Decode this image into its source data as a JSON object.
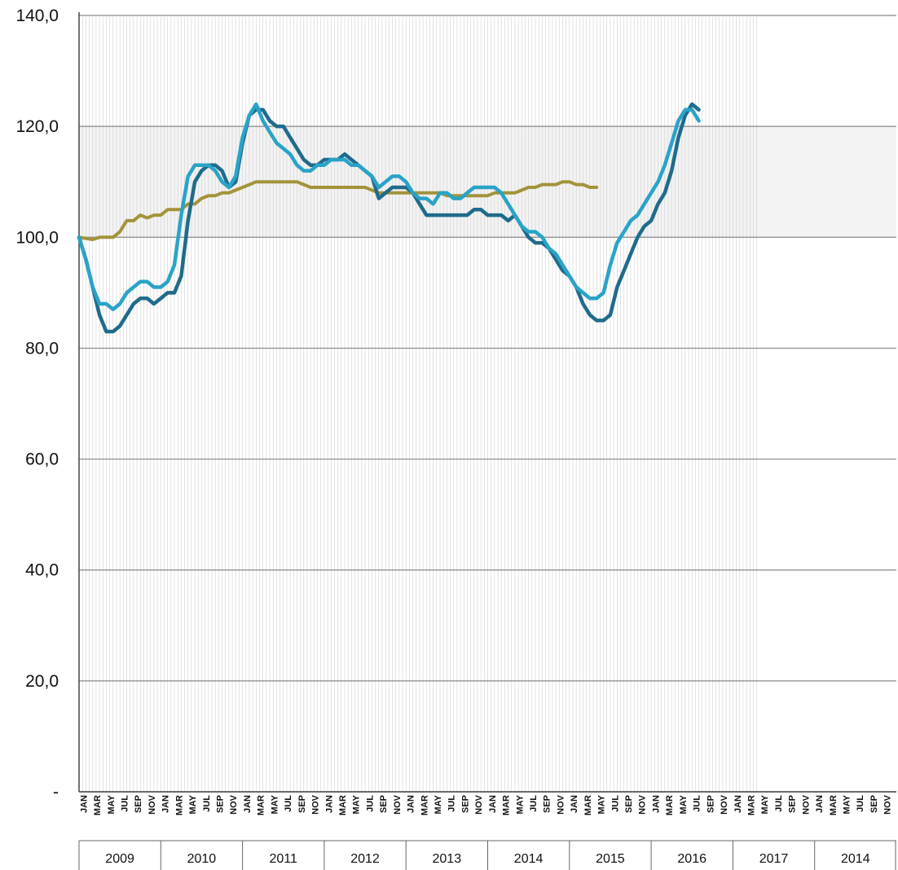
{
  "chart_data": {
    "type": "line",
    "title": "",
    "xlabel": "",
    "ylabel": "",
    "ylim": [
      0,
      140
    ],
    "grid": true,
    "legend": "none",
    "y_ticks": [
      "-",
      "20,0",
      "40,0",
      "60,0",
      "80,0",
      "100,0",
      "120,0",
      "140,0"
    ],
    "y_tick_values": [
      0,
      20,
      40,
      60,
      80,
      100,
      120,
      140
    ],
    "month_labels": [
      "JAN",
      "MAR",
      "MAY",
      "JUL",
      "SEP",
      "NOV"
    ],
    "year_labels": [
      "2009",
      "2010",
      "2011",
      "2012",
      "2013",
      "2014",
      "2015",
      "2016",
      "2017",
      "2014"
    ],
    "shaded_band": [
      100,
      120
    ],
    "colors": {
      "dark_teal": "#1f6b8c",
      "light_blue": "#2aa3c8",
      "olive": "#a3933a",
      "grid": "#888888",
      "band": "#f3f3f3"
    },
    "series": [
      {
        "color": "#1f6b8c",
        "points": [
          [
            0,
            100
          ],
          [
            1,
            96
          ],
          [
            2,
            91
          ],
          [
            3,
            86
          ],
          [
            4,
            83
          ],
          [
            5,
            83
          ],
          [
            6,
            84
          ],
          [
            7,
            86
          ],
          [
            8,
            88
          ],
          [
            9,
            89
          ],
          [
            10,
            89
          ],
          [
            11,
            88
          ],
          [
            12,
            89
          ],
          [
            13,
            90
          ],
          [
            14,
            90
          ],
          [
            15,
            93
          ],
          [
            16,
            103
          ],
          [
            17,
            110
          ],
          [
            18,
            112
          ],
          [
            19,
            113
          ],
          [
            20,
            113
          ],
          [
            21,
            112
          ],
          [
            22,
            109
          ],
          [
            23,
            110
          ],
          [
            24,
            117
          ],
          [
            25,
            122
          ],
          [
            26,
            123
          ],
          [
            27,
            123
          ],
          [
            28,
            121
          ],
          [
            29,
            120
          ],
          [
            30,
            120
          ],
          [
            31,
            118
          ],
          [
            32,
            116
          ],
          [
            33,
            114
          ],
          [
            34,
            113
          ],
          [
            35,
            113
          ],
          [
            36,
            114
          ],
          [
            37,
            114
          ],
          [
            38,
            114
          ],
          [
            39,
            115
          ],
          [
            40,
            114
          ],
          [
            41,
            113
          ],
          [
            42,
            112
          ],
          [
            43,
            111
          ],
          [
            44,
            107
          ],
          [
            45,
            108
          ],
          [
            46,
            109
          ],
          [
            47,
            109
          ],
          [
            48,
            109
          ],
          [
            49,
            108
          ],
          [
            50,
            106
          ],
          [
            51,
            104
          ],
          [
            52,
            104
          ],
          [
            53,
            104
          ],
          [
            54,
            104
          ],
          [
            55,
            104
          ],
          [
            56,
            104
          ],
          [
            57,
            104
          ],
          [
            58,
            105
          ],
          [
            59,
            105
          ],
          [
            60,
            104
          ],
          [
            61,
            104
          ],
          [
            62,
            104
          ],
          [
            63,
            103
          ],
          [
            64,
            104
          ],
          [
            65,
            102
          ],
          [
            66,
            100
          ],
          [
            67,
            99
          ],
          [
            68,
            99
          ],
          [
            69,
            98
          ],
          [
            70,
            96
          ],
          [
            71,
            94
          ],
          [
            72,
            93
          ],
          [
            73,
            91
          ],
          [
            74,
            88
          ],
          [
            75,
            86
          ],
          [
            76,
            85
          ],
          [
            77,
            85
          ],
          [
            78,
            86
          ],
          [
            79,
            91
          ],
          [
            80,
            94
          ],
          [
            81,
            97
          ],
          [
            82,
            100
          ],
          [
            83,
            102
          ],
          [
            84,
            103
          ],
          [
            85,
            106
          ],
          [
            86,
            108
          ],
          [
            87,
            112
          ],
          [
            88,
            118
          ],
          [
            89,
            122
          ],
          [
            90,
            124
          ],
          [
            91,
            123
          ]
        ]
      },
      {
        "color": "#2aa3c8",
        "points": [
          [
            0,
            100
          ],
          [
            1,
            96
          ],
          [
            2,
            91
          ],
          [
            3,
            88
          ],
          [
            4,
            88
          ],
          [
            5,
            87
          ],
          [
            6,
            88
          ],
          [
            7,
            90
          ],
          [
            8,
            91
          ],
          [
            9,
            92
          ],
          [
            10,
            92
          ],
          [
            11,
            91
          ],
          [
            12,
            91
          ],
          [
            13,
            92
          ],
          [
            14,
            95
          ],
          [
            15,
            104
          ],
          [
            16,
            111
          ],
          [
            17,
            113
          ],
          [
            18,
            113
          ],
          [
            19,
            113
          ],
          [
            20,
            112
          ],
          [
            21,
            110
          ],
          [
            22,
            109
          ],
          [
            23,
            111
          ],
          [
            24,
            118
          ],
          [
            25,
            122
          ],
          [
            26,
            124
          ],
          [
            27,
            121
          ],
          [
            28,
            119
          ],
          [
            29,
            117
          ],
          [
            30,
            116
          ],
          [
            31,
            115
          ],
          [
            32,
            113
          ],
          [
            33,
            112
          ],
          [
            34,
            112
          ],
          [
            35,
            113
          ],
          [
            36,
            113
          ],
          [
            37,
            114
          ],
          [
            38,
            114
          ],
          [
            39,
            114
          ],
          [
            40,
            113
          ],
          [
            41,
            113
          ],
          [
            42,
            112
          ],
          [
            43,
            111
          ],
          [
            44,
            109
          ],
          [
            45,
            110
          ],
          [
            46,
            111
          ],
          [
            47,
            111
          ],
          [
            48,
            110
          ],
          [
            49,
            108
          ],
          [
            50,
            107
          ],
          [
            51,
            107
          ],
          [
            52,
            106
          ],
          [
            53,
            108
          ],
          [
            54,
            108
          ],
          [
            55,
            107
          ],
          [
            56,
            107
          ],
          [
            57,
            108
          ],
          [
            58,
            109
          ],
          [
            59,
            109
          ],
          [
            60,
            109
          ],
          [
            61,
            109
          ],
          [
            62,
            108
          ],
          [
            63,
            106
          ],
          [
            64,
            104
          ],
          [
            65,
            102
          ],
          [
            66,
            101
          ],
          [
            67,
            101
          ],
          [
            68,
            100
          ],
          [
            69,
            98
          ],
          [
            70,
            97
          ],
          [
            71,
            95
          ],
          [
            72,
            93
          ],
          [
            73,
            91
          ],
          [
            74,
            90
          ],
          [
            75,
            89
          ],
          [
            76,
            89
          ],
          [
            77,
            90
          ],
          [
            78,
            95
          ],
          [
            79,
            99
          ],
          [
            80,
            101
          ],
          [
            81,
            103
          ],
          [
            82,
            104
          ],
          [
            83,
            106
          ],
          [
            84,
            108
          ],
          [
            85,
            110
          ],
          [
            86,
            113
          ],
          [
            87,
            117
          ],
          [
            88,
            121
          ],
          [
            89,
            123
          ],
          [
            90,
            123
          ],
          [
            91,
            121
          ]
        ]
      },
      {
        "color": "#a3933a",
        "points": [
          [
            0,
            100
          ],
          [
            1,
            99.8
          ],
          [
            2,
            99.6
          ],
          [
            3,
            100
          ],
          [
            4,
            100
          ],
          [
            5,
            100
          ],
          [
            6,
            101
          ],
          [
            7,
            103
          ],
          [
            8,
            103
          ],
          [
            9,
            104
          ],
          [
            10,
            103.5
          ],
          [
            11,
            104
          ],
          [
            12,
            104
          ],
          [
            13,
            105
          ],
          [
            14,
            105
          ],
          [
            15,
            105
          ],
          [
            16,
            106
          ],
          [
            17,
            106
          ],
          [
            18,
            107
          ],
          [
            19,
            107.5
          ],
          [
            20,
            107.5
          ],
          [
            21,
            108
          ],
          [
            22,
            108
          ],
          [
            23,
            108.5
          ],
          [
            24,
            109
          ],
          [
            25,
            109.5
          ],
          [
            26,
            110
          ],
          [
            27,
            110
          ],
          [
            28,
            110
          ],
          [
            29,
            110
          ],
          [
            30,
            110
          ],
          [
            31,
            110
          ],
          [
            32,
            110
          ],
          [
            33,
            109.5
          ],
          [
            34,
            109
          ],
          [
            35,
            109
          ],
          [
            36,
            109
          ],
          [
            37,
            109
          ],
          [
            38,
            109
          ],
          [
            39,
            109
          ],
          [
            40,
            109
          ],
          [
            41,
            109
          ],
          [
            42,
            109
          ],
          [
            43,
            108.5
          ],
          [
            44,
            108
          ],
          [
            45,
            108
          ],
          [
            46,
            108
          ],
          [
            47,
            108
          ],
          [
            48,
            108
          ],
          [
            49,
            108
          ],
          [
            50,
            108
          ],
          [
            51,
            108
          ],
          [
            52,
            108
          ],
          [
            53,
            108
          ],
          [
            54,
            107.5
          ],
          [
            55,
            107.5
          ],
          [
            56,
            107.5
          ],
          [
            57,
            107.5
          ],
          [
            58,
            107.5
          ],
          [
            59,
            107.5
          ],
          [
            60,
            107.5
          ],
          [
            61,
            108
          ],
          [
            62,
            108
          ],
          [
            63,
            108
          ],
          [
            64,
            108
          ],
          [
            65,
            108.5
          ],
          [
            66,
            109
          ],
          [
            67,
            109
          ],
          [
            68,
            109.5
          ],
          [
            69,
            109.5
          ],
          [
            70,
            109.5
          ],
          [
            71,
            110
          ],
          [
            72,
            110
          ],
          [
            73,
            109.5
          ],
          [
            74,
            109.5
          ],
          [
            75,
            109
          ],
          [
            76,
            109
          ]
        ]
      }
    ]
  }
}
